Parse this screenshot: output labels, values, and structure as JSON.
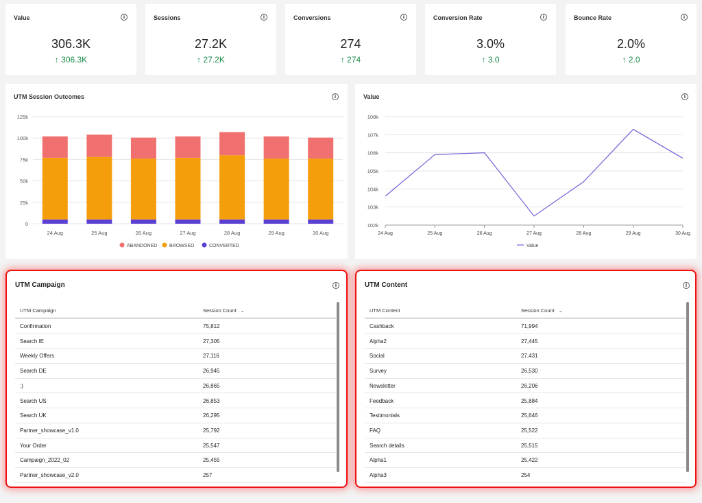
{
  "kpis": [
    {
      "title": "Value",
      "value": "306.3K",
      "delta": "↑ 306.3K"
    },
    {
      "title": "Sessions",
      "value": "27.2K",
      "delta": "↑ 27.2K"
    },
    {
      "title": "Conversions",
      "value": "274",
      "delta": "↑ 274"
    },
    {
      "title": "Conversion Rate",
      "value": "3.0%",
      "delta": "↑ 3.0"
    },
    {
      "title": "Bounce Rate",
      "value": "2.0%",
      "delta": "↑ 2.0"
    }
  ],
  "info_glyph": "i",
  "outcomes_chart": {
    "title": "UTM Session Outcomes",
    "chart_data": {
      "type": "bar",
      "stacked": true,
      "categories": [
        "24 Aug",
        "25 Aug",
        "26 Aug",
        "27 Aug",
        "28 Aug",
        "29 Aug",
        "30 Aug"
      ],
      "series": [
        {
          "name": "CONVERTED",
          "color": "#5b3fd3",
          "values": [
            5000,
            5000,
            5000,
            5000,
            5000,
            5000,
            5000
          ]
        },
        {
          "name": "BROWSED",
          "color": "#f59e0b",
          "values": [
            72000,
            73000,
            71000,
            72000,
            75000,
            71000,
            71000
          ]
        },
        {
          "name": "ABANDONED",
          "color": "#f07070",
          "values": [
            25000,
            26000,
            24500,
            25000,
            27000,
            26000,
            24500
          ]
        }
      ],
      "legend": [
        "ABANDONED",
        "BROWSED",
        "CONVERTED"
      ],
      "yticks": [
        "0",
        "25k",
        "50k",
        "75k",
        "100k",
        "125k"
      ],
      "ylim": [
        0,
        125000
      ],
      "legend_position": "bottom",
      "grid": true
    }
  },
  "value_chart": {
    "title": "Value",
    "chart_data": {
      "type": "line",
      "categories": [
        "24 Aug",
        "25 Aug",
        "26 Aug",
        "27 Aug",
        "28 Aug",
        "29 Aug",
        "30 Aug"
      ],
      "series": [
        {
          "name": "Value",
          "color": "#6f63d8",
          "values": [
            103600,
            105900,
            106000,
            102500,
            104400,
            107300,
            105700
          ]
        }
      ],
      "yticks": [
        "102k",
        "103k",
        "104k",
        "105k",
        "106k",
        "107k",
        "108k"
      ],
      "ylim": [
        102000,
        108000
      ],
      "legend_position": "bottom",
      "grid": true
    }
  },
  "campaign_table": {
    "title": "UTM Campaign",
    "col1": "UTM Campaign",
    "col2": "Session Count",
    "sort_glyph": "⌄",
    "rows": [
      [
        "Confirmation",
        "75,812"
      ],
      [
        "Search IE",
        "27,305"
      ],
      [
        "Weekly Offers",
        "27,116"
      ],
      [
        "Search DE",
        "26,945"
      ],
      [
        ":)",
        "26,865"
      ],
      [
        "Search US",
        "26,853"
      ],
      [
        "Search UK",
        "26,295"
      ],
      [
        "Partner_showcase_v1.0",
        "25,792"
      ],
      [
        "Your Order",
        "25,547"
      ],
      [
        "Campaign_2022_02",
        "25,455"
      ],
      [
        "Partner_showcase_v2.0",
        "257"
      ]
    ]
  },
  "content_table": {
    "title": "UTM Content",
    "col1": "UTM Content",
    "col2": "Session Count",
    "sort_glyph": "⌄",
    "rows": [
      [
        "Cashback",
        "71,994"
      ],
      [
        "Alpha2",
        "27,445"
      ],
      [
        "Social",
        "27,431"
      ],
      [
        "Survey",
        "26,530"
      ],
      [
        "Newsletter",
        "26,206"
      ],
      [
        "Feedback",
        "25,884"
      ],
      [
        "Testimonials",
        "25,646"
      ],
      [
        "FAQ",
        "25,522"
      ],
      [
        "Search details",
        "25,515"
      ],
      [
        "Alpha1",
        "25,422"
      ],
      [
        "Alpha3",
        "254"
      ]
    ]
  }
}
